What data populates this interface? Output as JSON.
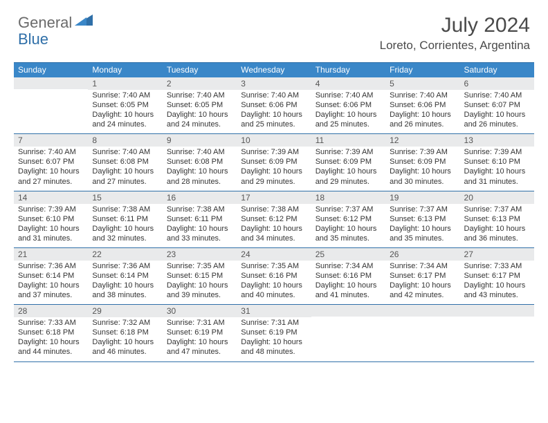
{
  "logo": {
    "general": "General",
    "blue": "Blue",
    "shape_color": "#2f6fa8"
  },
  "title": "July 2024",
  "location": "Loreto, Corrientes, Argentina",
  "colors": {
    "header_bar": "#3a87c8",
    "row_border": "#2f6fa8",
    "daynum_bg": "#e9eaeb",
    "text": "#333333",
    "title_text": "#4a4a4a"
  },
  "days_of_week": [
    "Sunday",
    "Monday",
    "Tuesday",
    "Wednesday",
    "Thursday",
    "Friday",
    "Saturday"
  ],
  "weeks": [
    [
      {
        "num": "",
        "sunrise": "",
        "sunset": "",
        "daylight": ""
      },
      {
        "num": "1",
        "sunrise": "7:40 AM",
        "sunset": "6:05 PM",
        "daylight": "10 hours and 24 minutes."
      },
      {
        "num": "2",
        "sunrise": "7:40 AM",
        "sunset": "6:05 PM",
        "daylight": "10 hours and 24 minutes."
      },
      {
        "num": "3",
        "sunrise": "7:40 AM",
        "sunset": "6:06 PM",
        "daylight": "10 hours and 25 minutes."
      },
      {
        "num": "4",
        "sunrise": "7:40 AM",
        "sunset": "6:06 PM",
        "daylight": "10 hours and 25 minutes."
      },
      {
        "num": "5",
        "sunrise": "7:40 AM",
        "sunset": "6:06 PM",
        "daylight": "10 hours and 26 minutes."
      },
      {
        "num": "6",
        "sunrise": "7:40 AM",
        "sunset": "6:07 PM",
        "daylight": "10 hours and 26 minutes."
      }
    ],
    [
      {
        "num": "7",
        "sunrise": "7:40 AM",
        "sunset": "6:07 PM",
        "daylight": "10 hours and 27 minutes."
      },
      {
        "num": "8",
        "sunrise": "7:40 AM",
        "sunset": "6:08 PM",
        "daylight": "10 hours and 27 minutes."
      },
      {
        "num": "9",
        "sunrise": "7:40 AM",
        "sunset": "6:08 PM",
        "daylight": "10 hours and 28 minutes."
      },
      {
        "num": "10",
        "sunrise": "7:39 AM",
        "sunset": "6:09 PM",
        "daylight": "10 hours and 29 minutes."
      },
      {
        "num": "11",
        "sunrise": "7:39 AM",
        "sunset": "6:09 PM",
        "daylight": "10 hours and 29 minutes."
      },
      {
        "num": "12",
        "sunrise": "7:39 AM",
        "sunset": "6:09 PM",
        "daylight": "10 hours and 30 minutes."
      },
      {
        "num": "13",
        "sunrise": "7:39 AM",
        "sunset": "6:10 PM",
        "daylight": "10 hours and 31 minutes."
      }
    ],
    [
      {
        "num": "14",
        "sunrise": "7:39 AM",
        "sunset": "6:10 PM",
        "daylight": "10 hours and 31 minutes."
      },
      {
        "num": "15",
        "sunrise": "7:38 AM",
        "sunset": "6:11 PM",
        "daylight": "10 hours and 32 minutes."
      },
      {
        "num": "16",
        "sunrise": "7:38 AM",
        "sunset": "6:11 PM",
        "daylight": "10 hours and 33 minutes."
      },
      {
        "num": "17",
        "sunrise": "7:38 AM",
        "sunset": "6:12 PM",
        "daylight": "10 hours and 34 minutes."
      },
      {
        "num": "18",
        "sunrise": "7:37 AM",
        "sunset": "6:12 PM",
        "daylight": "10 hours and 35 minutes."
      },
      {
        "num": "19",
        "sunrise": "7:37 AM",
        "sunset": "6:13 PM",
        "daylight": "10 hours and 35 minutes."
      },
      {
        "num": "20",
        "sunrise": "7:37 AM",
        "sunset": "6:13 PM",
        "daylight": "10 hours and 36 minutes."
      }
    ],
    [
      {
        "num": "21",
        "sunrise": "7:36 AM",
        "sunset": "6:14 PM",
        "daylight": "10 hours and 37 minutes."
      },
      {
        "num": "22",
        "sunrise": "7:36 AM",
        "sunset": "6:14 PM",
        "daylight": "10 hours and 38 minutes."
      },
      {
        "num": "23",
        "sunrise": "7:35 AM",
        "sunset": "6:15 PM",
        "daylight": "10 hours and 39 minutes."
      },
      {
        "num": "24",
        "sunrise": "7:35 AM",
        "sunset": "6:16 PM",
        "daylight": "10 hours and 40 minutes."
      },
      {
        "num": "25",
        "sunrise": "7:34 AM",
        "sunset": "6:16 PM",
        "daylight": "10 hours and 41 minutes."
      },
      {
        "num": "26",
        "sunrise": "7:34 AM",
        "sunset": "6:17 PM",
        "daylight": "10 hours and 42 minutes."
      },
      {
        "num": "27",
        "sunrise": "7:33 AM",
        "sunset": "6:17 PM",
        "daylight": "10 hours and 43 minutes."
      }
    ],
    [
      {
        "num": "28",
        "sunrise": "7:33 AM",
        "sunset": "6:18 PM",
        "daylight": "10 hours and 44 minutes."
      },
      {
        "num": "29",
        "sunrise": "7:32 AM",
        "sunset": "6:18 PM",
        "daylight": "10 hours and 46 minutes."
      },
      {
        "num": "30",
        "sunrise": "7:31 AM",
        "sunset": "6:19 PM",
        "daylight": "10 hours and 47 minutes."
      },
      {
        "num": "31",
        "sunrise": "7:31 AM",
        "sunset": "6:19 PM",
        "daylight": "10 hours and 48 minutes."
      },
      {
        "num": "",
        "sunrise": "",
        "sunset": "",
        "daylight": ""
      },
      {
        "num": "",
        "sunrise": "",
        "sunset": "",
        "daylight": ""
      },
      {
        "num": "",
        "sunrise": "",
        "sunset": "",
        "daylight": ""
      }
    ]
  ],
  "labels": {
    "sunrise": "Sunrise:",
    "sunset": "Sunset:",
    "daylight": "Daylight:"
  }
}
